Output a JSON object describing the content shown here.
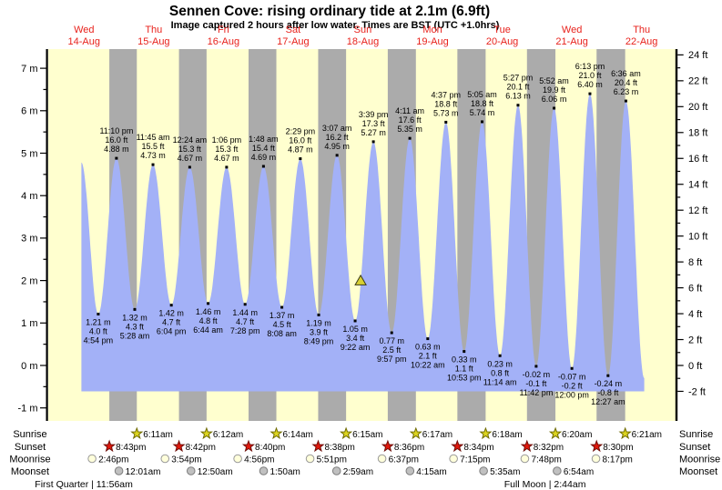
{
  "title": "Sennen Cove: rising  ordinary tide at 2.1m (6.9ft)",
  "subtitle": "Image captured 2 hours after low water. Times are BST (UTC +1.0hrs)",
  "colors": {
    "background": "#ffffff",
    "plot_day": "#ffffcf",
    "plot_night": "#ababab",
    "tide_fill": "#a3b1f7",
    "day_label_red": "#e8221c",
    "sunrise_icon": "#dcd41f",
    "sunrise_icon_border": "#6f6a00",
    "sunset_icon": "#e0180c",
    "sunset_icon_border": "#6e0c06",
    "moonrise_icon": "#ffffdb",
    "moonrise_icon_border": "#9a9a9a",
    "moonset_icon": "#c0c0c0",
    "moonset_icon_border": "#7d7d7d",
    "marker_fill": "#d8d032",
    "marker_border": "#3a3a1a"
  },
  "side_labels": {
    "sunrise_left": "Sunrise",
    "sunset_left": "Sunset",
    "moonrise_left": "Moonrise",
    "moonset_left": "Moonset",
    "sunrise_right": "Sunrise",
    "sunset_right": "Sunset",
    "moonrise_right": "Moonrise",
    "moonset_right": "Moonset"
  },
  "chart_data": {
    "type": "area",
    "title": "Sennen Cove: rising ordinary tide at 2.1m (6.9ft)",
    "x_axis": {
      "days": [
        {
          "name": "Wed",
          "date": "14-Aug"
        },
        {
          "name": "Thu",
          "date": "15-Aug"
        },
        {
          "name": "Fri",
          "date": "16-Aug"
        },
        {
          "name": "Sat",
          "date": "17-Aug"
        },
        {
          "name": "Sun",
          "date": "18-Aug"
        },
        {
          "name": "Mon",
          "date": "19-Aug"
        },
        {
          "name": "Tue",
          "date": "20-Aug"
        },
        {
          "name": "Wed",
          "date": "21-Aug"
        },
        {
          "name": "Thu",
          "date": "22-Aug"
        }
      ]
    },
    "y_axis_left": {
      "unit": "m",
      "min": -1,
      "max": 7,
      "major_step": 1,
      "label_format": "{v} m"
    },
    "y_axis_right": {
      "unit": "ft",
      "min": -2,
      "max": 24,
      "major_step": 2,
      "label_format": "{v} ft"
    },
    "grid": false,
    "tide_events": [
      {
        "d": 0,
        "t": "11:05 am",
        "h": 4.78,
        "type": "high",
        "labels": []
      },
      {
        "d": 0,
        "t": "4:54 pm",
        "h": 1.21,
        "type": "low",
        "labels": [
          "1.21 m",
          "4.0 ft",
          "4:54 pm"
        ]
      },
      {
        "d": 0,
        "t": "11:10 pm",
        "h": 4.88,
        "type": "high",
        "labels": [
          "11:10 pm",
          "16.0 ft",
          "4.88 m"
        ]
      },
      {
        "d": 1,
        "t": "5:28 am",
        "h": 1.32,
        "type": "low",
        "labels": [
          "1.32 m",
          "4.3 ft",
          "5:28 am"
        ]
      },
      {
        "d": 1,
        "t": "11:45 am",
        "h": 4.73,
        "type": "high",
        "labels": [
          "11:45 am",
          "15.5 ft",
          "4.73 m"
        ]
      },
      {
        "d": 1,
        "t": "6:04 pm",
        "h": 1.42,
        "type": "low",
        "labels": [
          "1.42 m",
          "4.7 ft",
          "6:04 pm"
        ]
      },
      {
        "d": 2,
        "t": "12:24 am",
        "h": 4.67,
        "type": "high",
        "labels": [
          "12:24 am",
          "15.3 ft",
          "4.67 m"
        ]
      },
      {
        "d": 2,
        "t": "6:44 am",
        "h": 1.46,
        "type": "low",
        "labels": [
          "1.46 m",
          "4.8 ft",
          "6:44 am"
        ]
      },
      {
        "d": 2,
        "t": "1:06 pm",
        "h": 4.67,
        "type": "high",
        "labels": [
          "1:06 pm",
          "15.3 ft",
          "4.67 m"
        ]
      },
      {
        "d": 2,
        "t": "7:28 pm",
        "h": 1.44,
        "type": "low",
        "labels": [
          "1.44 m",
          "4.7 ft",
          "7:28 pm"
        ]
      },
      {
        "d": 3,
        "t": "1:48 am",
        "h": 4.69,
        "type": "high",
        "labels": [
          "1:48 am",
          "15.4 ft",
          "4.69 m"
        ]
      },
      {
        "d": 3,
        "t": "8:08 am",
        "h": 1.37,
        "type": "low",
        "labels": [
          "1.37 m",
          "4.5 ft",
          "8:08 am"
        ]
      },
      {
        "d": 3,
        "t": "2:29 pm",
        "h": 4.87,
        "type": "high",
        "labels": [
          "2:29 pm",
          "16.0 ft",
          "4.87 m"
        ]
      },
      {
        "d": 3,
        "t": "8:49 pm",
        "h": 1.19,
        "type": "low",
        "labels": [
          "1.19 m",
          "3.9 ft",
          "8:49 pm"
        ]
      },
      {
        "d": 4,
        "t": "3:07 am",
        "h": 4.95,
        "type": "high",
        "labels": [
          "3:07 am",
          "16.2 ft",
          "4.95 m"
        ]
      },
      {
        "d": 4,
        "t": "9:22 am",
        "h": 1.05,
        "type": "low",
        "labels": [
          "1.05 m",
          "3.4 ft",
          "9:22 am"
        ]
      },
      {
        "d": 4,
        "t": "3:39 pm",
        "h": 5.27,
        "type": "high",
        "labels": [
          "3:39 pm",
          "17.3 ft",
          "5.27 m"
        ]
      },
      {
        "d": 4,
        "t": "9:57 pm",
        "h": 0.77,
        "type": "low",
        "labels": [
          "0.77 m",
          "2.5 ft",
          "9:57 pm"
        ]
      },
      {
        "d": 5,
        "t": "4:11 am",
        "h": 5.35,
        "type": "high",
        "labels": [
          "4:11 am",
          "17.6 ft",
          "5.35 m"
        ]
      },
      {
        "d": 5,
        "t": "10:22 am",
        "h": 0.63,
        "type": "low",
        "labels": [
          "0.63 m",
          "2.1 ft",
          "10:22 am"
        ]
      },
      {
        "d": 5,
        "t": "4:37 pm",
        "h": 5.73,
        "type": "high",
        "labels": [
          "4:37 pm",
          "18.8 ft",
          "5.73 m"
        ]
      },
      {
        "d": 5,
        "t": "10:53 pm",
        "h": 0.33,
        "type": "low",
        "labels": [
          "0.33 m",
          "1.1 ft",
          "10:53 pm"
        ]
      },
      {
        "d": 6,
        "t": "5:05 am",
        "h": 5.74,
        "type": "high",
        "labels": [
          "5:05 am",
          "18.8 ft",
          "5.74 m"
        ]
      },
      {
        "d": 6,
        "t": "11:14 am",
        "h": 0.23,
        "type": "low",
        "labels": [
          "0.23 m",
          "0.8 ft",
          "11:14 am"
        ]
      },
      {
        "d": 6,
        "t": "5:27 pm",
        "h": 6.13,
        "type": "high",
        "labels": [
          "5:27 pm",
          "20.1 ft",
          "6.13 m"
        ]
      },
      {
        "d": 6,
        "t": "11:42 pm",
        "h": -0.02,
        "type": "low",
        "labels": [
          "-0.02 m",
          "-0.1 ft",
          "11:42 pm"
        ]
      },
      {
        "d": 7,
        "t": "5:52 am",
        "h": 6.06,
        "type": "high",
        "labels": [
          "5:52 am",
          "19.9 ft",
          "6.06 m"
        ]
      },
      {
        "d": 7,
        "t": "12:00 pm",
        "h": -0.07,
        "type": "low",
        "labels": [
          "-0.07 m",
          "-0.2 ft",
          "12:00 pm"
        ]
      },
      {
        "d": 7,
        "t": "6:13 pm",
        "h": 6.4,
        "type": "high",
        "labels": [
          "6:13 pm",
          "21.0 ft",
          "6.40 m"
        ]
      },
      {
        "d": 8,
        "t": "12:27 am",
        "h": -0.24,
        "type": "low",
        "labels": [
          "-0.24 m",
          "-0.8 ft",
          "12:27 am"
        ]
      },
      {
        "d": 8,
        "t": "6:36 am",
        "h": 6.23,
        "type": "high",
        "labels": [
          "6:36 am",
          "20.4 ft",
          "6.23 m"
        ]
      },
      {
        "d": 8,
        "t": "12:55 pm",
        "h": -0.3,
        "type": "low",
        "labels": []
      }
    ],
    "current_level_marker": {
      "d": 4,
      "t": "11:15 am",
      "h": 2.1
    },
    "sun_moon": {
      "sunrise": {
        "icon": "sunrise-star-icon",
        "entries": [
          {
            "d": 1,
            "t": "6:11am"
          },
          {
            "d": 2,
            "t": "6:12am"
          },
          {
            "d": 3,
            "t": "6:14am"
          },
          {
            "d": 4,
            "t": "6:15am"
          },
          {
            "d": 5,
            "t": "6:17am"
          },
          {
            "d": 6,
            "t": "6:18am"
          },
          {
            "d": 7,
            "t": "6:20am"
          },
          {
            "d": 8,
            "t": "6:21am"
          }
        ]
      },
      "sunset": {
        "icon": "sunset-star-icon",
        "entries": [
          {
            "d": 0,
            "t": "8:43pm"
          },
          {
            "d": 1,
            "t": "8:42pm"
          },
          {
            "d": 2,
            "t": "8:40pm"
          },
          {
            "d": 3,
            "t": "8:38pm"
          },
          {
            "d": 4,
            "t": "8:36pm"
          },
          {
            "d": 5,
            "t": "8:34pm"
          },
          {
            "d": 6,
            "t": "8:32pm"
          },
          {
            "d": 7,
            "t": "8:30pm"
          }
        ]
      },
      "moonrise": {
        "icon": "moonrise-circle-icon",
        "entries": [
          {
            "d": 0,
            "t": "2:46pm"
          },
          {
            "d": 1,
            "t": "3:54pm"
          },
          {
            "d": 2,
            "t": "4:56pm"
          },
          {
            "d": 3,
            "t": "5:51pm"
          },
          {
            "d": 4,
            "t": "6:37pm"
          },
          {
            "d": 5,
            "t": "7:15pm"
          },
          {
            "d": 6,
            "t": "7:48pm"
          },
          {
            "d": 7,
            "t": "8:17pm"
          }
        ]
      },
      "moonset": {
        "icon": "moonset-circle-icon",
        "entries": [
          {
            "d": 1,
            "t": "12:01am"
          },
          {
            "d": 2,
            "t": "12:50am"
          },
          {
            "d": 3,
            "t": "1:50am"
          },
          {
            "d": 4,
            "t": "2:59am"
          },
          {
            "d": 5,
            "t": "4:15am"
          },
          {
            "d": 6,
            "t": "5:35am"
          },
          {
            "d": 7,
            "t": "6:54am"
          }
        ]
      }
    },
    "moon_phases": [
      {
        "label": "First Quarter | 11:56am",
        "d": 0,
        "t": "11:56am"
      },
      {
        "label": "Full Moon | 2:44am",
        "d": 7,
        "t": "2:44am"
      }
    ]
  }
}
